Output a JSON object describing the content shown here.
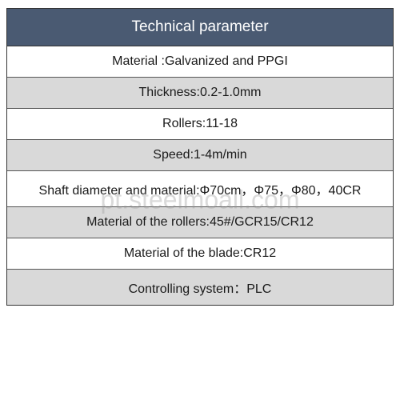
{
  "table": {
    "header": "Technical parameter",
    "header_bg": "#4a5a72",
    "header_color": "#ffffff",
    "header_fontsize": 19,
    "row_fontsize": 16,
    "row_color": "#1a1a1a",
    "border_color": "#333333",
    "bg_white": "#ffffff",
    "bg_gray": "#d9d9d9",
    "rows": [
      {
        "text": "Material :Galvanized and PPGI",
        "bg": "white"
      },
      {
        "text": "Thickness:0.2-1.0mm",
        "bg": "gray"
      },
      {
        "text": "Rollers:11-18",
        "bg": "white"
      },
      {
        "text": "Speed:1-4m/min",
        "bg": "gray"
      },
      {
        "text": "Shaft diameter and material:Φ70cm，Φ75，Φ80，40CR",
        "bg": "white"
      },
      {
        "text": "Material of the rollers:45#/GCR15/CR12",
        "bg": "gray"
      },
      {
        "text": "Material of the blade:CR12",
        "bg": "white"
      },
      {
        "text": "Controlling system：PLC",
        "bg": "gray"
      }
    ]
  },
  "watermark": {
    "text": "pt.steelmoall.com",
    "color": "rgba(150,150,150,0.35)",
    "fontsize": 32
  }
}
